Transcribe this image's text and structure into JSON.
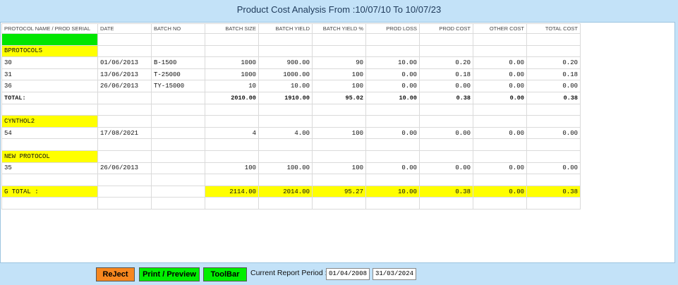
{
  "header": {
    "title": "Product Cost Analysis From :10/07/10 To 10/07/23"
  },
  "table": {
    "columns": [
      "PROTOCOL NAME / PROD SERIAL",
      "DATE",
      "BATCH NO",
      "BATCH SIZE",
      "BATCH YIELD",
      "BATCH YIELD %",
      "PROD LOSS",
      "PROD COST",
      "OTHER COST",
      "TOTAL COST"
    ],
    "rows": [
      null,
      [
        [
          "BPROTOCOLS"
        ]
      ],
      [
        "30",
        "01/06/2013",
        "B-1500",
        "1000",
        "900.00",
        "90",
        "10.00",
        "0.20",
        "0.00",
        "0.20"
      ],
      [
        "31",
        "13/06/2013",
        "T-25000",
        "1000",
        "1000.00",
        "100",
        "0.00",
        "0.18",
        "0.00",
        "0.18"
      ],
      [
        "36",
        "26/06/2013",
        "TY-15000",
        "10",
        "10.00",
        "100",
        "0.00",
        "0.00",
        "0.00",
        "0.00"
      ],
      [
        "TOTAL:",
        null,
        null,
        "2010.00",
        "1910.00",
        "95.02",
        "10.00",
        "0.38",
        "0.00",
        "0.38"
      ],
      null,
      [
        [
          "CYNTHOL2"
        ]
      ],
      [
        "54",
        "17/08/2021",
        null,
        "4",
        "4.00",
        "100",
        "0.00",
        "0.00",
        "0.00",
        "0.00"
      ],
      null,
      [
        [
          "NEW PROTOCOL"
        ]
      ],
      [
        "35",
        "26/06/2013",
        null,
        "100",
        "100.00",
        "100",
        "0.00",
        "0.00",
        "0.00",
        "0.00"
      ],
      null,
      [
        "G TOTAL :",
        null,
        null,
        "2114.00",
        "2014.00",
        "95.27",
        "10.00",
        "0.38",
        "0.00",
        "0.38"
      ],
      null
    ]
  },
  "footer": {
    "buttons": [
      "ReJect",
      "Print / Preview",
      "ToolBar"
    ],
    "period_label": "Current Report Period :",
    "period_from": "01/04/2008",
    "period_to": "31/03/2024"
  }
}
